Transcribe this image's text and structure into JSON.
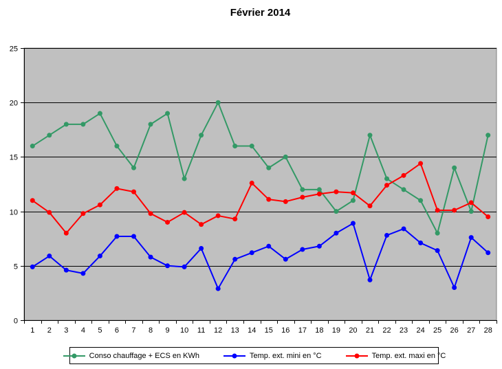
{
  "chart": {
    "title": "Février 2014"
  },
  "chart_data": {
    "type": "line",
    "title": "Février 2014",
    "categories": [
      "1",
      "2",
      "3",
      "4",
      "5",
      "6",
      "7",
      "8",
      "9",
      "10",
      "11",
      "12",
      "13",
      "14",
      "15",
      "16",
      "17",
      "18",
      "19",
      "20",
      "21",
      "22",
      "23",
      "24",
      "25",
      "26",
      "27",
      "28"
    ],
    "series": [
      {
        "name": "Conso chauffage + ECS en KWh",
        "color": "#339966",
        "values": [
          16,
          17,
          18,
          18,
          19,
          16,
          14,
          18,
          19,
          13,
          17,
          20,
          16,
          16,
          14,
          15,
          12,
          12,
          10,
          11,
          17,
          13,
          12,
          11,
          8,
          14,
          10,
          17
        ]
      },
      {
        "name": "Temp. ext. mini en °C",
        "color": "#0000FF",
        "values": [
          4.9,
          5.9,
          4.6,
          4.3,
          5.9,
          7.7,
          7.7,
          5.8,
          5.0,
          4.9,
          6.6,
          2.9,
          5.6,
          6.2,
          6.8,
          5.6,
          6.5,
          6.8,
          8.0,
          8.9,
          3.7,
          7.8,
          8.4,
          7.1,
          6.4,
          3.0,
          7.6,
          6.2
        ]
      },
      {
        "name": "Temp. ext. maxi en °C",
        "color": "#FF0000",
        "values": [
          11.0,
          9.9,
          8.0,
          9.8,
          10.6,
          12.1,
          11.8,
          9.8,
          9.0,
          9.9,
          8.8,
          9.6,
          9.3,
          12.6,
          11.1,
          10.9,
          11.3,
          11.6,
          11.8,
          11.7,
          10.5,
          12.4,
          13.3,
          14.4,
          10.1,
          10.1,
          10.8,
          9.5
        ]
      }
    ],
    "xlabel": "",
    "ylabel": "",
    "ylim": [
      0,
      25
    ],
    "yticks": [
      0,
      5,
      10,
      15,
      20,
      25
    ],
    "grid": true,
    "legend_position": "bottom",
    "plot_bg": "#C0C0C0",
    "plot_border": "#808080",
    "axis_color": "#000000",
    "gridline_color": "#000000"
  }
}
